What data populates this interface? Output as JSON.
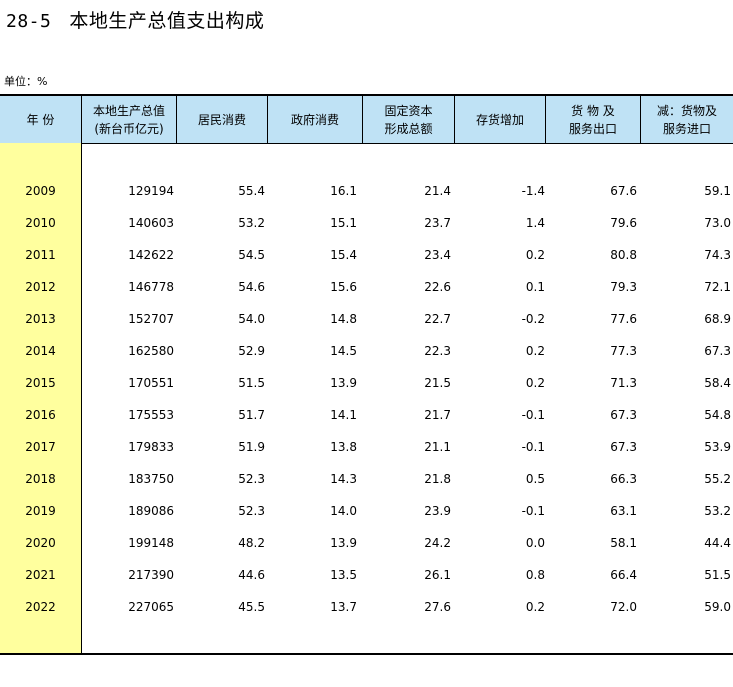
{
  "title": {
    "number": "28-5",
    "text": "本地生产总值支出构成"
  },
  "unit": "单位：%",
  "columns": [
    {
      "line1": "年  份",
      "line2": ""
    },
    {
      "line1": "本地生产总值",
      "line2": "(新台币亿元)"
    },
    {
      "line1": "居民消费",
      "line2": ""
    },
    {
      "line1": "政府消费",
      "line2": ""
    },
    {
      "line1": "固定资本",
      "line2": "形成总额"
    },
    {
      "line1": "存货增加",
      "line2": ""
    },
    {
      "line1": "货 物 及",
      "line2": "服务出口"
    },
    {
      "line1": "减：货物及",
      "line2": "服务进口"
    }
  ],
  "rows": [
    [
      "2009",
      "129194",
      "55.4",
      "16.1",
      "21.4",
      "-1.4",
      "67.6",
      "59.1"
    ],
    [
      "2010",
      "140603",
      "53.2",
      "15.1",
      "23.7",
      "1.4",
      "79.6",
      "73.0"
    ],
    [
      "2011",
      "142622",
      "54.5",
      "15.4",
      "23.4",
      "0.2",
      "80.8",
      "74.3"
    ],
    [
      "2012",
      "146778",
      "54.6",
      "15.6",
      "22.6",
      "0.1",
      "79.3",
      "72.1"
    ],
    [
      "2013",
      "152707",
      "54.0",
      "14.8",
      "22.7",
      "-0.2",
      "77.6",
      "68.9"
    ],
    [
      "2014",
      "162580",
      "52.9",
      "14.5",
      "22.3",
      "0.2",
      "77.3",
      "67.3"
    ],
    [
      "2015",
      "170551",
      "51.5",
      "13.9",
      "21.5",
      "0.2",
      "71.3",
      "58.4"
    ],
    [
      "2016",
      "175553",
      "51.7",
      "14.1",
      "21.7",
      "-0.1",
      "67.3",
      "54.8"
    ],
    [
      "2017",
      "179833",
      "51.9",
      "13.8",
      "21.1",
      "-0.1",
      "67.3",
      "53.9"
    ],
    [
      "2018",
      "183750",
      "52.3",
      "14.3",
      "21.8",
      "0.5",
      "66.3",
      "55.2"
    ],
    [
      "2019",
      "189086",
      "52.3",
      "14.0",
      "23.9",
      "-0.1",
      "63.1",
      "53.2"
    ],
    [
      "2020",
      "199148",
      "48.2",
      "13.9",
      "24.2",
      "0.0",
      "58.1",
      "44.4"
    ],
    [
      "2021",
      "217390",
      "44.6",
      "13.5",
      "26.1",
      "0.8",
      "66.4",
      "51.5"
    ],
    [
      "2022",
      "227065",
      "45.5",
      "13.7",
      "27.6",
      "0.2",
      "72.0",
      "59.0"
    ]
  ]
}
